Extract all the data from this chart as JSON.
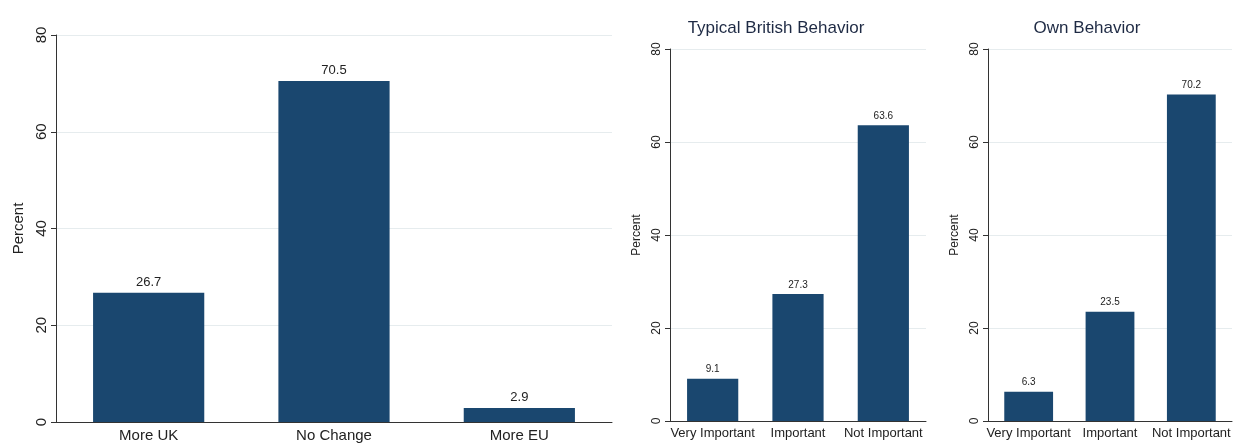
{
  "chart_data": [
    {
      "type": "bar",
      "ylabel": "Percent",
      "categories": [
        "More UK",
        "No Change",
        "More EU"
      ],
      "values": [
        26.7,
        70.5,
        2.9
      ],
      "color": "#1a476f",
      "ylim": [
        0,
        80
      ],
      "yticks": [
        0,
        20,
        40,
        60,
        80
      ],
      "grid": "y",
      "data_labels": true
    },
    {
      "type": "bar",
      "title": "Typical British Behavior",
      "ylabel": "Percent",
      "categories": [
        "Very Important",
        "Important",
        "Not Important"
      ],
      "values": [
        9.1,
        27.3,
        63.6
      ],
      "color": "#1a476f",
      "ylim": [
        0,
        80
      ],
      "yticks": [
        0,
        20,
        40,
        60,
        80
      ],
      "grid": "y",
      "data_labels": true
    },
    {
      "type": "bar",
      "title": "Own Behavior",
      "ylabel": "Percent",
      "categories": [
        "Very Important",
        "Important",
        "Not Important"
      ],
      "values": [
        6.3,
        23.5,
        70.2
      ],
      "color": "#1a476f",
      "ylim": [
        0,
        80
      ],
      "yticks": [
        0,
        20,
        40,
        60,
        80
      ],
      "grid": "y",
      "data_labels": true
    }
  ]
}
